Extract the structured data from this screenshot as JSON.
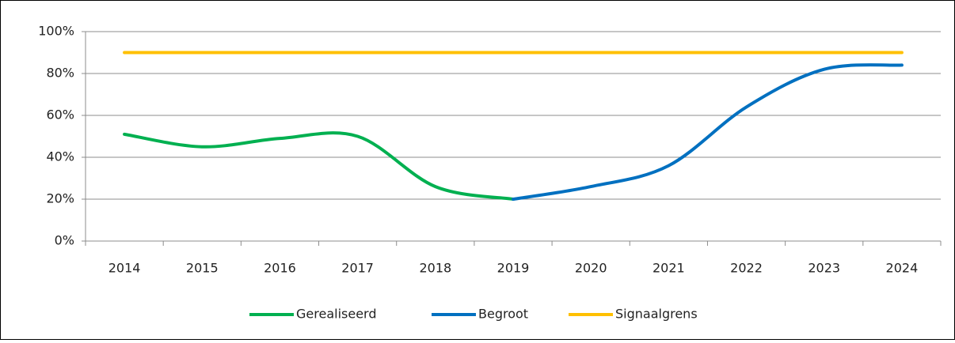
{
  "chart_data": {
    "type": "line",
    "categories": [
      "2014",
      "2015",
      "2016",
      "2017",
      "2018",
      "2019",
      "2020",
      "2021",
      "2022",
      "2023",
      "2024"
    ],
    "series": [
      {
        "name": "Gerealiseerd",
        "color": "#00b050",
        "values": [
          51,
          45,
          49,
          50,
          26,
          20,
          null,
          null,
          null,
          null,
          null
        ]
      },
      {
        "name": "Begroot",
        "color": "#0070c0",
        "values": [
          null,
          null,
          null,
          null,
          null,
          20,
          26,
          36,
          64,
          82,
          84
        ]
      },
      {
        "name": "Signaalgrens",
        "color": "#ffc000",
        "values": [
          90,
          90,
          90,
          90,
          90,
          90,
          90,
          90,
          90,
          90,
          90
        ]
      }
    ],
    "ylim": [
      0,
      100
    ],
    "yticks": [
      {
        "value": 0,
        "label": "0%"
      },
      {
        "value": 20,
        "label": "20%"
      },
      {
        "value": 40,
        "label": "40%"
      },
      {
        "value": 60,
        "label": "60%"
      },
      {
        "value": 80,
        "label": "80%"
      },
      {
        "value": 100,
        "label": "100%"
      }
    ],
    "grid": true,
    "legend": "bottom"
  }
}
